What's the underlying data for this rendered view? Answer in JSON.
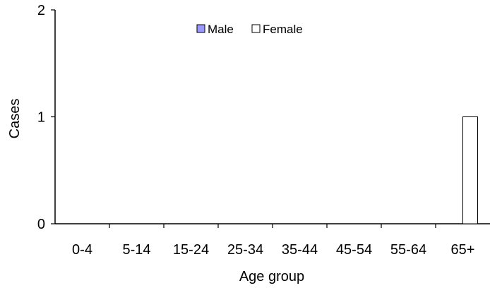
{
  "chart_data": {
    "type": "bar",
    "title": "",
    "xlabel": "Age group",
    "ylabel": "Cases",
    "categories": [
      "0-4",
      "5-14",
      "15-24",
      "25-34",
      "35-44",
      "45-54",
      "55-64",
      "65+"
    ],
    "series": [
      {
        "name": "Male",
        "color": "#9999ff",
        "values": [
          0,
          0,
          0,
          0,
          0,
          0,
          0,
          0
        ]
      },
      {
        "name": "Female",
        "color": "#ffffff",
        "values": [
          0,
          0,
          0,
          0,
          0,
          0,
          0,
          1
        ]
      }
    ],
    "ylim": [
      0,
      2
    ],
    "yticks": [
      "0",
      "1",
      "2"
    ],
    "grid": false,
    "legend_position": "top-center"
  }
}
